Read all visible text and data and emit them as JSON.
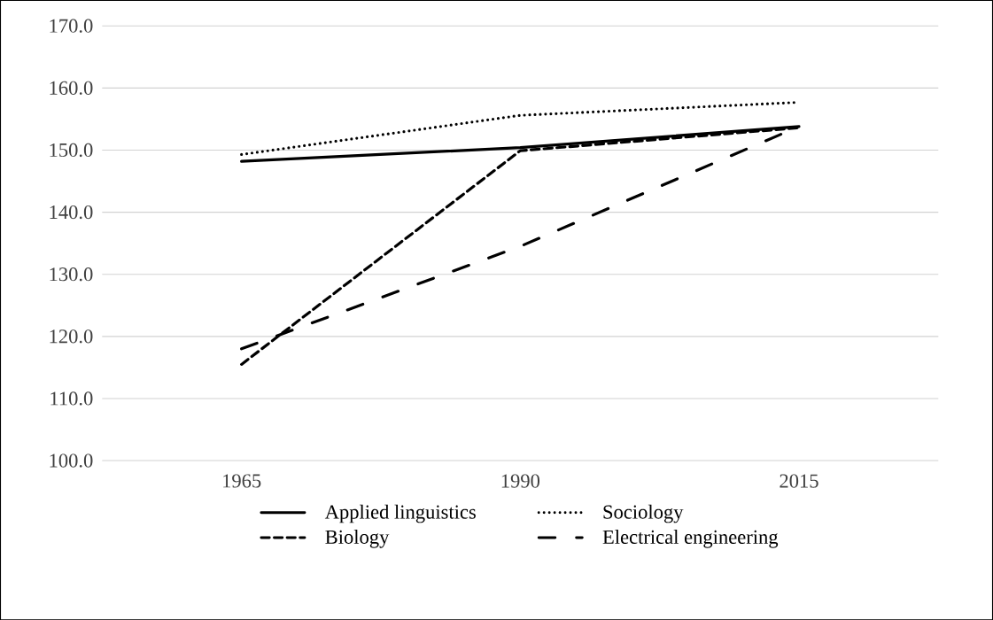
{
  "chart_data": {
    "type": "line",
    "categories": [
      "1965",
      "1990",
      "2015"
    ],
    "ylim": [
      100,
      170
    ],
    "yticks": [
      {
        "value": 100,
        "label": "100.0"
      },
      {
        "value": 110,
        "label": "110.0"
      },
      {
        "value": 120,
        "label": "120.0"
      },
      {
        "value": 130,
        "label": "130.0"
      },
      {
        "value": 140,
        "label": "140.0"
      },
      {
        "value": 150,
        "label": "150.0"
      },
      {
        "value": 160,
        "label": "160.0"
      },
      {
        "value": 170,
        "label": "170.0"
      }
    ],
    "grid": "y",
    "legend": "bottom",
    "marker": "none",
    "series": [
      {
        "name": "Applied linguistics",
        "color": "#000000",
        "line_style": "solid",
        "values": [
          148.2,
          150.4,
          153.8
        ]
      },
      {
        "name": "Sociology",
        "color": "#000000",
        "line_style": "dotted",
        "values": [
          149.3,
          155.6,
          157.7
        ]
      },
      {
        "name": "Biology",
        "color": "#000000",
        "line_style": "dashed",
        "values": [
          115.5,
          149.9,
          153.6
        ]
      },
      {
        "name": "Electrical engineering",
        "color": "#000000",
        "line_style": "dashdot",
        "values": [
          118.0,
          134.5,
          153.8
        ]
      }
    ]
  }
}
